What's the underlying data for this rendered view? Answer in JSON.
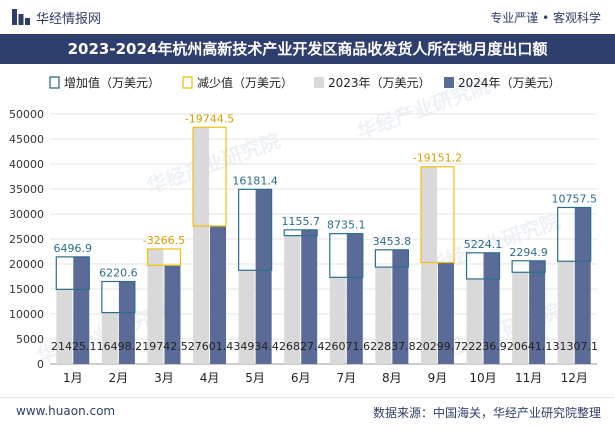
{
  "header": {
    "brand": "华经情报网",
    "tag_left": "专业严谨",
    "tag_sep": "•",
    "tag_right": "客观科学"
  },
  "title": "2023-2024年杭州高新技术产业开发区商品收发货人所在地月度出口额",
  "footer": {
    "site": "www.huaon.com",
    "source": "数据来源：中国海关，华经产业研究院整理"
  },
  "colors": {
    "bar2023": "#d9d9d9",
    "bar2024": "#5a6b98",
    "increase": "#2d6e8c",
    "decrease": "#f2c00b",
    "label_inc": "#2d6e8c",
    "label_dec": "#d8a000",
    "title_bg": "#2e3f6e",
    "watermark": "#cfd6e6"
  },
  "chart_data": {
    "type": "bar",
    "title": "2023-2024年杭州高新技术产业开发区商品收发货人所在地月度出口额",
    "categories": [
      "1月",
      "2月",
      "3月",
      "4月",
      "5月",
      "6月",
      "7月",
      "8月",
      "9月",
      "10月",
      "11月",
      "12月"
    ],
    "series": [
      {
        "name": "2023年（万美元）",
        "values": [
          14928.2,
          10277.6,
          23009.0,
          47346.1,
          18753.0,
          25671.7,
          17336.5,
          19384.0,
          39451.0,
          17012.7,
          18346.2,
          20549.6
        ]
      },
      {
        "name": "2024年（万美元）",
        "values": [
          21425.1,
          16498.2,
          19742.5,
          27601.4,
          34934.4,
          26827.4,
          26071.6,
          22837.8,
          20299.7,
          22236.9,
          20641.1,
          31307.1
        ]
      }
    ],
    "change": [
      6496.9,
      6220.6,
      -3266.5,
      -19744.5,
      16181.4,
      1155.7,
      8735.1,
      3453.8,
      -19151.2,
      5224.1,
      2294.9,
      10757.5
    ],
    "change_labels": [
      "6496.9",
      "6220.6",
      "-3266.5",
      "-19744.5",
      "16181.4",
      "1155.7",
      "8735.1",
      "3453.8",
      "-19151.2",
      "5224.1",
      "2294.9",
      "10757.5"
    ],
    "value_labels_2024": [
      "21425.1",
      "16498.2",
      "19742.5",
      "27601.4",
      "34934.4",
      "26827.4",
      "26071.6",
      "22837.8",
      "20299.7",
      "22236.9",
      "20641.1",
      "31307.1"
    ],
    "legend": [
      "增加值（万美元）",
      "减少值（万美元）",
      "2023年（万美元）",
      "2024年（万美元）"
    ],
    "legend_position": "top-left",
    "ylim": [
      0,
      50000
    ],
    "yticks": [
      0,
      5000,
      10000,
      15000,
      20000,
      25000,
      30000,
      35000,
      40000,
      45000,
      50000
    ],
    "ytick_labels": [
      "0",
      "5000",
      "10000",
      "15000",
      "20000",
      "25000",
      "30000",
      "35000",
      "40000",
      "45000",
      "50000"
    ],
    "xlabel": "",
    "ylabel": ""
  },
  "watermark": {
    "text": "华经产业研究院"
  }
}
